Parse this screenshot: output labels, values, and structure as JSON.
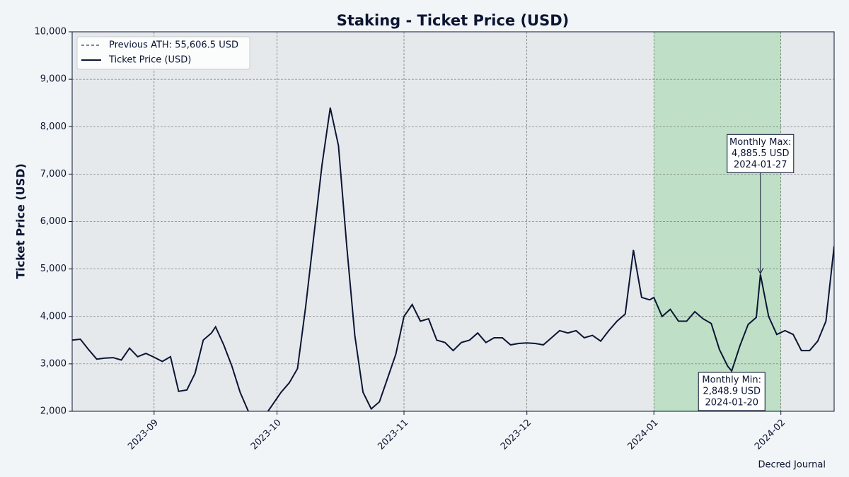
{
  "chart_data": {
    "type": "line",
    "title": "Staking - Ticket Price (USD)",
    "y_label": "Ticket Price (USD)",
    "source": "Decred Journal",
    "x": [
      "2023-08-12",
      "2023-08-14",
      "2023-08-16",
      "2023-08-18",
      "2023-08-20",
      "2023-08-22",
      "2023-08-24",
      "2023-08-26",
      "2023-08-28",
      "2023-08-30",
      "2023-09-01",
      "2023-09-03",
      "2023-09-05",
      "2023-09-07",
      "2023-09-09",
      "2023-09-11",
      "2023-09-13",
      "2023-09-15",
      "2023-09-16",
      "2023-09-18",
      "2023-09-20",
      "2023-09-22",
      "2023-09-24",
      "2023-09-26",
      "2023-09-28",
      "2023-09-30",
      "2023-10-02",
      "2023-10-04",
      "2023-10-06",
      "2023-10-08",
      "2023-10-10",
      "2023-10-12",
      "2023-10-14",
      "2023-10-16",
      "2023-10-18",
      "2023-10-20",
      "2023-10-22",
      "2023-10-24",
      "2023-10-26",
      "2023-10-28",
      "2023-10-30",
      "2023-11-01",
      "2023-11-03",
      "2023-11-05",
      "2023-11-07",
      "2023-11-09",
      "2023-11-11",
      "2023-11-13",
      "2023-11-15",
      "2023-11-17",
      "2023-11-19",
      "2023-11-21",
      "2023-11-23",
      "2023-11-25",
      "2023-11-27",
      "2023-11-29",
      "2023-12-01",
      "2023-12-03",
      "2023-12-05",
      "2023-12-07",
      "2023-12-09",
      "2023-12-11",
      "2023-12-13",
      "2023-12-15",
      "2023-12-17",
      "2023-12-19",
      "2023-12-21",
      "2023-12-23",
      "2023-12-25",
      "2023-12-27",
      "2023-12-29",
      "2023-12-31",
      "2024-01-01",
      "2024-01-03",
      "2024-01-05",
      "2024-01-07",
      "2024-01-09",
      "2024-01-11",
      "2024-01-13",
      "2024-01-15",
      "2024-01-17",
      "2024-01-19",
      "2024-01-20",
      "2024-01-22",
      "2024-01-24",
      "2024-01-26",
      "2024-01-27",
      "2024-01-29",
      "2024-01-31",
      "2024-02-02",
      "2024-02-04",
      "2024-02-06",
      "2024-02-08",
      "2024-02-10",
      "2024-02-12",
      "2024-02-13",
      "2024-02-14"
    ],
    "series": [
      {
        "name": "Ticket Price (USD)",
        "color": "#0b1533",
        "values": [
          3500,
          3520,
          3300,
          3100,
          3120,
          3130,
          3080,
          3330,
          3150,
          3220,
          3140,
          3050,
          3150,
          2420,
          2450,
          2800,
          3500,
          3650,
          3780,
          3400,
          2950,
          2400,
          2000,
          1900,
          1900,
          2150,
          2400,
          2600,
          2900,
          4200,
          5700,
          7200,
          8400,
          7600,
          5500,
          3600,
          2400,
          2050,
          2200,
          2700,
          3200,
          4000,
          4250,
          3900,
          3950,
          3500,
          3450,
          3280,
          3450,
          3500,
          3650,
          3450,
          3550,
          3550,
          3400,
          3430,
          3440,
          3430,
          3400,
          3550,
          3700,
          3650,
          3700,
          3550,
          3600,
          3480,
          3700,
          3900,
          4050,
          5400,
          4400,
          4350,
          4400,
          4000,
          4150,
          3900,
          3900,
          4100,
          3950,
          3850,
          3300,
          2950,
          2848.9,
          3380,
          3830,
          3980,
          4885.5,
          4000,
          3620,
          3700,
          3620,
          3280,
          3280,
          3480,
          3900,
          4700,
          5480
        ]
      }
    ],
    "previous_ath": {
      "label": "Previous ATH: 55,606.5 USD",
      "value": 55606.5
    },
    "highlight": {
      "range": [
        "2024-01-01",
        "2024-02-01"
      ],
      "color": "#bfe0c7"
    },
    "annotations": [
      {
        "lines": [
          "Monthly Max:",
          "4,885.5 USD",
          "2024-01-27"
        ],
        "x": "2024-01-27",
        "y": 4885.5,
        "arrow": true
      },
      {
        "lines": [
          "Monthly Min:",
          "2,848.9 USD",
          "2024-01-20"
        ],
        "x": "2024-01-20",
        "y": 2848.9,
        "arrow": false
      }
    ],
    "xlim": [
      "2023-08-12",
      "2024-02-14"
    ],
    "ylim": [
      2000,
      10000
    ],
    "xticks": [
      {
        "value": "2023-09-01",
        "label": "2023-09"
      },
      {
        "value": "2023-10-01",
        "label": "2023-10"
      },
      {
        "value": "2023-11-01",
        "label": "2023-11"
      },
      {
        "value": "2023-12-01",
        "label": "2023-12"
      },
      {
        "value": "2024-01-01",
        "label": "2024-01"
      },
      {
        "value": "2024-02-01",
        "label": "2024-02"
      }
    ],
    "yticks": [
      {
        "value": 2000,
        "label": "2,000"
      },
      {
        "value": 3000,
        "label": "3,000"
      },
      {
        "value": 4000,
        "label": "4,000"
      },
      {
        "value": 5000,
        "label": "5,000"
      },
      {
        "value": 6000,
        "label": "6,000"
      },
      {
        "value": 7000,
        "label": "7,000"
      },
      {
        "value": 8000,
        "label": "8,000"
      },
      {
        "value": 9000,
        "label": "9,000"
      },
      {
        "value": 10000,
        "label": "10,000"
      }
    ],
    "grid": true,
    "legend": "upper left"
  }
}
